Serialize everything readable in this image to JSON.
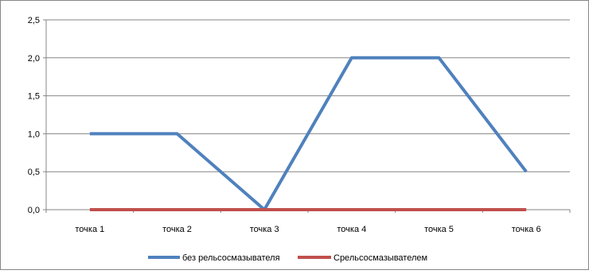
{
  "chart_data": {
    "type": "line",
    "categories": [
      "точка 1",
      "точка 2",
      "точка 3",
      "точка 4",
      "точка 5",
      "точка 6"
    ],
    "series": [
      {
        "name": "без рельсосмазывателя",
        "values": [
          1.0,
          1.0,
          0.0,
          2.0,
          2.0,
          0.5
        ],
        "color": "#4f81bd"
      },
      {
        "name": "Срельсосмазывателем",
        "values": [
          0,
          0,
          0,
          0,
          0,
          0
        ],
        "color": "#c0504d"
      }
    ],
    "y_ticks": [
      "0,0",
      "0,5",
      "1,0",
      "1,5",
      "2,0",
      "2,5"
    ],
    "ylim": [
      0,
      2.5
    ],
    "grid": true,
    "legend_position": "bottom"
  }
}
